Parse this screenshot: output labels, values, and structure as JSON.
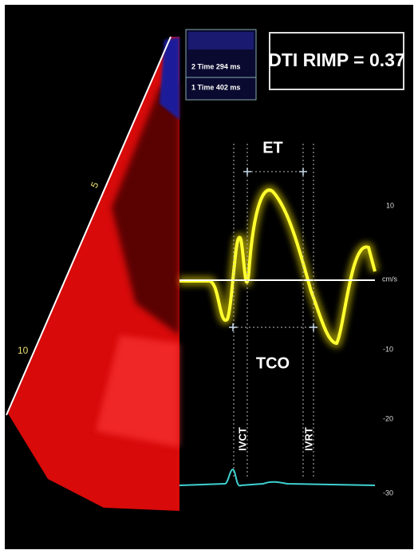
{
  "header": {
    "title": "DTI RIMP = 0.37"
  },
  "measurements": [
    {
      "label": "2 Time 294 ms"
    },
    {
      "label": "1 Time 402 ms"
    }
  ],
  "annotations": {
    "et": "ET",
    "tco": "TCO",
    "ivct": "IVCT",
    "ivrt": "IVRT"
  },
  "velocity_scale": {
    "unit": "cm/s",
    "labels": [
      "10",
      "-10",
      "-20",
      "-30"
    ]
  },
  "depth_scale": {
    "labels": [
      "5",
      "10"
    ]
  }
}
